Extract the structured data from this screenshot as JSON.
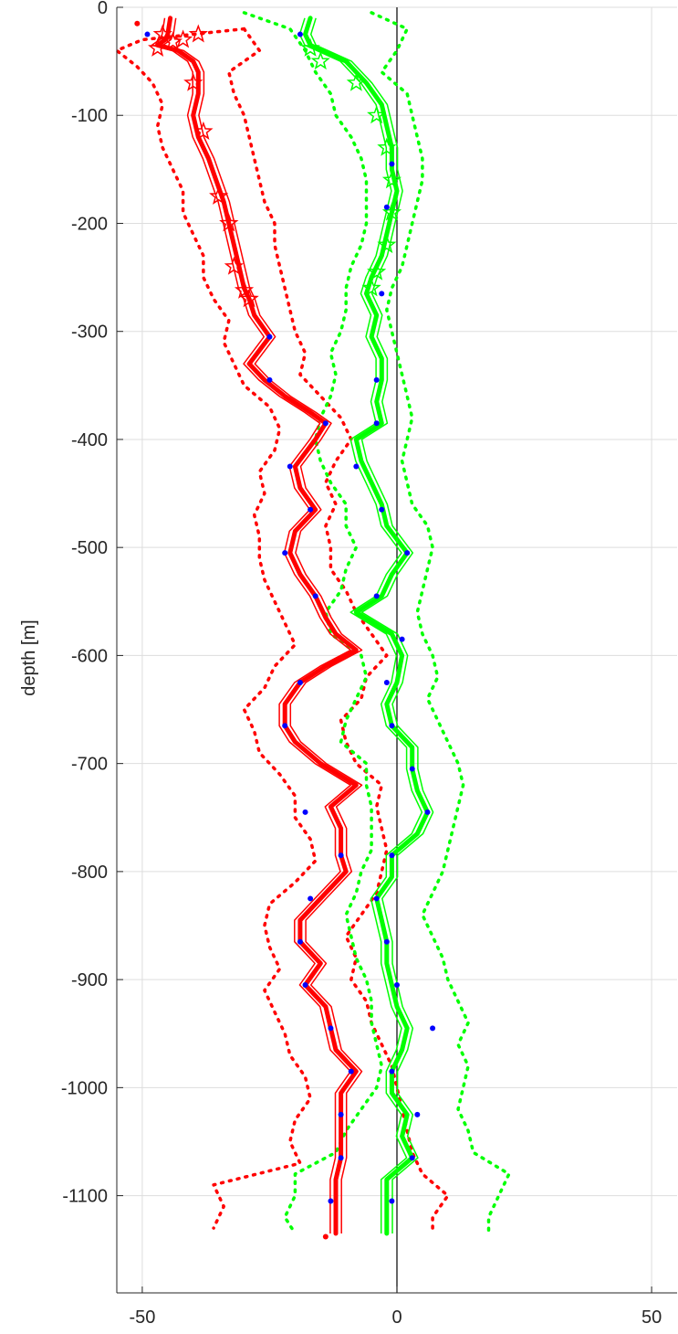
{
  "chart_data": {
    "type": "line",
    "title": "",
    "xlabel": "",
    "ylabel": "depth [m]",
    "xlim": [
      -55,
      55
    ],
    "ylim": [
      -1190,
      0
    ],
    "x_ticks": [
      -50,
      0,
      50
    ],
    "y_ticks": [
      0,
      -100,
      -200,
      -300,
      -400,
      -500,
      -600,
      -700,
      -800,
      -900,
      -1000,
      -1100
    ],
    "x_tick_labels": [
      "-50",
      "0",
      "50"
    ],
    "y_tick_labels": [
      "0",
      "-100",
      "-200",
      "-300",
      "-400",
      "-500",
      "-600",
      "-700",
      "-800",
      "-900",
      "-1000",
      "-1100"
    ],
    "grid": true,
    "zero_line_x": 0,
    "colors": {
      "red": "#ff0000",
      "green": "#00ff00",
      "blue": "#0000ff",
      "axis": "#262626",
      "grid": "#dddddd"
    },
    "series": [
      {
        "style": "thick-line",
        "color": "#ff0000",
        "y": [
          -10,
          -25,
          -30,
          -35,
          -40,
          -50,
          -60,
          -80,
          -100,
          -120,
          -140,
          -160,
          -180,
          -200,
          -220,
          -240,
          -260,
          -270,
          -285,
          -305,
          -330,
          -345,
          -360,
          -375,
          -385,
          -400,
          -425,
          -445,
          -465,
          -485,
          -505,
          -525,
          -545,
          -565,
          -580,
          -595,
          -610,
          -625,
          -645,
          -665,
          -680,
          -700,
          -720,
          -740,
          -760,
          -785,
          -800,
          -825,
          -845,
          -865,
          -885,
          -905,
          -925,
          -945,
          -965,
          -985,
          -1005,
          -1025,
          -1045,
          -1065,
          -1085,
          -1105,
          -1120,
          -1135
        ],
        "x": [
          -44.5,
          -45,
          -45.5,
          -47,
          -43,
          -40,
          -39,
          -39,
          -40,
          -39,
          -37,
          -35.5,
          -34,
          -33,
          -32,
          -31,
          -30,
          -29,
          -28,
          -25,
          -29,
          -26,
          -22,
          -17,
          -14,
          -16,
          -20,
          -19,
          -16,
          -20,
          -21,
          -19,
          -16,
          -14,
          -12,
          -8,
          -14,
          -19,
          -22,
          -22,
          -20,
          -15,
          -8,
          -13,
          -11,
          -11,
          -10,
          -15,
          -19,
          -19,
          -15,
          -18,
          -14,
          -13,
          -12,
          -8,
          -11,
          -11,
          -11,
          -11,
          -12,
          -12,
          -12,
          -12
        ]
      },
      {
        "style": "dotted",
        "color": "#ff0000",
        "y": [
          -20,
          -30,
          -40,
          -55,
          -70,
          -90,
          -110,
          -130,
          -150,
          -170,
          -190,
          -210,
          -230,
          -250,
          -270,
          -290,
          -310,
          -330,
          -350,
          -370,
          -390,
          -410,
          -430,
          -450,
          -470,
          -490,
          -510,
          -530,
          -550,
          -570,
          -590,
          -610,
          -630,
          -650,
          -670,
          -690,
          -710,
          -730,
          -750,
          -770,
          -790,
          -810,
          -830,
          -850,
          -870,
          -890,
          -910,
          -930,
          -950,
          -970,
          -990,
          -1010,
          -1030,
          -1050,
          -1070,
          -1090,
          -1110,
          -1130
        ],
        "x": [
          -30,
          -50,
          -55,
          -51,
          -48,
          -46,
          -47,
          -46,
          -44,
          -42,
          -42,
          -40,
          -38,
          -38,
          -36,
          -33,
          -34,
          -32,
          -30,
          -25,
          -23,
          -24,
          -27,
          -26,
          -28,
          -27,
          -27,
          -26,
          -24,
          -22,
          -20,
          -24,
          -26,
          -30,
          -28,
          -27,
          -23,
          -20,
          -20,
          -17,
          -16,
          -20,
          -25,
          -26,
          -25,
          -23,
          -26,
          -24,
          -22,
          -21,
          -18,
          -17,
          -20,
          -21,
          -19,
          -36,
          -34,
          -36
        ]
      },
      {
        "style": "dotted",
        "color": "#ff0000",
        "y": [
          -20,
          -40,
          -60,
          -80,
          -100,
          -120,
          -140,
          -160,
          -180,
          -200,
          -220,
          -240,
          -260,
          -280,
          -300,
          -320,
          -340,
          -360,
          -380,
          -400,
          -420,
          -440,
          -460,
          -480,
          -500,
          -520,
          -540,
          -560,
          -580,
          -600,
          -620,
          -640,
          -660,
          -680,
          -700,
          -720,
          -740,
          -760,
          -780,
          -800,
          -820,
          -840,
          -860,
          -880,
          -900,
          -920,
          -940,
          -960,
          -980,
          -1000,
          -1020,
          -1040,
          -1060,
          -1080,
          -1100,
          -1120,
          -1130
        ],
        "x": [
          -30,
          -27,
          -33,
          -32,
          -30,
          -29,
          -28,
          -27,
          -26,
          -24,
          -24,
          -23,
          -22,
          -21,
          -20,
          -18,
          -19,
          -15,
          -11,
          -9,
          -12,
          -14,
          -12,
          -14,
          -13,
          -13,
          -10,
          -8,
          -5,
          -2,
          -6,
          -7,
          -11,
          -10,
          -8,
          -3,
          -4,
          -3,
          -2,
          -3,
          -4,
          -7,
          -10,
          -8,
          -9,
          -6,
          -5,
          -3,
          -1,
          0,
          1,
          2,
          3,
          5,
          10,
          7,
          7
        ]
      },
      {
        "style": "thick-line",
        "color": "#00ff00",
        "y": [
          -10,
          -25,
          -35,
          -50,
          -70,
          -90,
          -110,
          -130,
          -150,
          -170,
          -190,
          -210,
          -230,
          -250,
          -265,
          -285,
          -305,
          -325,
          -345,
          -365,
          -385,
          -400,
          -420,
          -440,
          -460,
          -480,
          -505,
          -525,
          -545,
          -560,
          -580,
          -600,
          -625,
          -645,
          -665,
          -685,
          -705,
          -725,
          -745,
          -765,
          -785,
          -805,
          -825,
          -845,
          -865,
          -885,
          -905,
          -925,
          -945,
          -965,
          -985,
          -1005,
          -1025,
          -1045,
          -1065,
          -1085,
          -1105,
          -1120,
          -1135
        ],
        "x": [
          -17,
          -18,
          -17,
          -10,
          -6,
          -3,
          -2,
          -1,
          -1,
          0,
          -1,
          -2,
          -3,
          -5,
          -6,
          -4,
          -5,
          -3,
          -3,
          -4,
          -3,
          -8,
          -7,
          -5,
          -3,
          -2,
          2,
          -1,
          -3,
          -8,
          -1,
          1,
          0,
          -2,
          -1,
          3,
          3,
          4,
          6,
          4,
          -1,
          -1,
          -4,
          -3,
          -2,
          -2,
          -1,
          0,
          2,
          1,
          -1,
          -1,
          2,
          1,
          3,
          -2,
          -2,
          -2,
          -2
        ]
      },
      {
        "style": "dotted",
        "color": "#00ff00",
        "y": [
          -5,
          -20,
          -40,
          -60,
          -80,
          -100,
          -120,
          -140,
          -160,
          -180,
          -200,
          -220,
          -240,
          -260,
          -280,
          -300,
          -320,
          -340,
          -360,
          -380,
          -400,
          -420,
          -440,
          -460,
          -480,
          -500,
          -520,
          -540,
          -560,
          -580,
          -600,
          -620,
          -640,
          -660,
          -680,
          -700,
          -720,
          -740,
          -760,
          -780,
          -800,
          -820,
          -840,
          -860,
          -880,
          -900,
          -920,
          -940,
          -960,
          -980,
          -1000,
          -1020,
          -1040,
          -1060,
          -1080,
          -1100,
          -1120,
          -1135
        ],
        "x": [
          -30,
          -21,
          -18,
          -16,
          -13,
          -12,
          -9,
          -7,
          -6,
          -6,
          -6,
          -7,
          -9,
          -10,
          -10,
          -11,
          -13,
          -12,
          -13,
          -15,
          -16,
          -15,
          -13,
          -10,
          -10,
          -8,
          -10,
          -11,
          -14,
          -13,
          -7,
          -6,
          -8,
          -10,
          -11,
          -6,
          -6,
          -5,
          -5,
          -5,
          -7,
          -8,
          -10,
          -9,
          -8,
          -6,
          -5,
          -5,
          -4,
          -3,
          -4,
          -7,
          -10,
          -12,
          -20,
          -20,
          -22,
          -20
        ]
      },
      {
        "style": "dotted",
        "color": "#00ff00",
        "y": [
          -5,
          -20,
          -40,
          -60,
          -80,
          -100,
          -120,
          -140,
          -160,
          -180,
          -200,
          -220,
          -240,
          -260,
          -280,
          -300,
          -320,
          -340,
          -360,
          -380,
          -400,
          -420,
          -440,
          -460,
          -480,
          -500,
          -520,
          -540,
          -560,
          -580,
          -600,
          -620,
          -640,
          -660,
          -680,
          -700,
          -720,
          -740,
          -760,
          -780,
          -800,
          -820,
          -840,
          -860,
          -880,
          -900,
          -920,
          -940,
          -960,
          -980,
          -1000,
          -1020,
          -1040,
          -1060,
          -1080,
          -1100,
          -1120,
          -1135
        ],
        "x": [
          -5,
          2,
          0,
          -3,
          2,
          3,
          4,
          5,
          5,
          4,
          3,
          2,
          1,
          -1,
          -2,
          -1,
          0,
          1,
          2,
          3,
          2,
          1,
          2,
          3,
          6,
          7,
          6,
          5,
          4,
          5,
          7,
          8,
          6,
          8,
          10,
          12,
          13,
          12,
          11,
          10,
          9,
          7,
          5,
          7,
          9,
          10,
          12,
          14,
          12,
          14,
          13,
          12,
          14,
          15,
          22,
          20,
          18,
          18
        ]
      }
    ],
    "markers": [
      {
        "shape": "star",
        "color": "#ff0000",
        "points": [
          [
            -46,
            -25
          ],
          [
            -44,
            -32
          ],
          [
            -47,
            -38
          ],
          [
            -42,
            -30
          ],
          [
            -39,
            -25
          ],
          [
            -40,
            -70
          ],
          [
            -38,
            -115
          ],
          [
            -35,
            -175
          ],
          [
            -33,
            -200
          ],
          [
            -32,
            -240
          ],
          [
            -30,
            -262
          ],
          [
            -29,
            -270
          ]
        ]
      },
      {
        "shape": "star",
        "color": "#00ff00",
        "points": [
          [
            -17,
            -38
          ],
          [
            -15,
            -50
          ],
          [
            -8,
            -70
          ],
          [
            -4,
            -100
          ],
          [
            -2,
            -130
          ],
          [
            -1,
            -160
          ],
          [
            -1,
            -190
          ],
          [
            -2,
            -220
          ],
          [
            -4,
            -245
          ],
          [
            -5,
            -260
          ]
        ]
      },
      {
        "shape": "dot",
        "color": "#0000ff",
        "points": [
          [
            -49,
            -25
          ],
          [
            -25,
            -305
          ],
          [
            -25,
            -345
          ],
          [
            -14,
            -385
          ],
          [
            -21,
            -425
          ],
          [
            -17,
            -465
          ],
          [
            -22,
            -505
          ],
          [
            -16,
            -545
          ],
          [
            -19,
            -625
          ],
          [
            -22,
            -665
          ],
          [
            -18,
            -745
          ],
          [
            -11,
            -785
          ],
          [
            -17,
            -825
          ],
          [
            -19,
            -865
          ],
          [
            -18,
            -905
          ],
          [
            -13,
            -945
          ],
          [
            -9,
            -985
          ],
          [
            -11,
            -1025
          ],
          [
            -11,
            -1065
          ],
          [
            -13,
            -1105
          ],
          [
            -19,
            -25
          ],
          [
            -1,
            -145
          ],
          [
            -2,
            -185
          ],
          [
            -3,
            -265
          ],
          [
            -4,
            -345
          ],
          [
            -4,
            -385
          ],
          [
            -8,
            -425
          ],
          [
            -3,
            -465
          ],
          [
            2,
            -505
          ],
          [
            -4,
            -545
          ],
          [
            1,
            -585
          ],
          [
            -2,
            -625
          ],
          [
            -1,
            -665
          ],
          [
            3,
            -705
          ],
          [
            6,
            -745
          ],
          [
            -1,
            -785
          ],
          [
            -4,
            -825
          ],
          [
            -2,
            -865
          ],
          [
            0,
            -905
          ],
          [
            7,
            -945
          ],
          [
            -1,
            -985
          ],
          [
            4,
            -1025
          ],
          [
            3,
            -1065
          ],
          [
            -1,
            -1105
          ]
        ]
      },
      {
        "shape": "dot",
        "color": "#ff0000",
        "points": [
          [
            -51,
            -15
          ],
          [
            -14,
            -1138
          ]
        ]
      }
    ]
  }
}
